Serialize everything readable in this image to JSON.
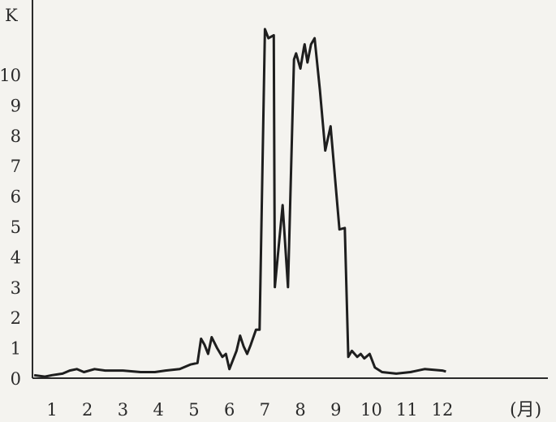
{
  "chart_data": {
    "type": "line",
    "title": "",
    "ylabel": "K",
    "xlabel": "(月)",
    "xlim": [
      0.5,
      13.4
    ],
    "ylim": [
      0,
      11.2
    ],
    "xticks": [
      "1",
      "2",
      "3",
      "4",
      "5",
      "6",
      "7",
      "8",
      "9",
      "10",
      "11",
      "12"
    ],
    "yticks": [
      "0",
      "1",
      "2",
      "3",
      "4",
      "5",
      "6",
      "7",
      "8",
      "9",
      "10"
    ],
    "grid": false,
    "series": [
      {
        "points": [
          [
            0.5,
            0.1
          ],
          [
            0.8,
            0.05
          ],
          [
            1.0,
            0.1
          ],
          [
            1.3,
            0.15
          ],
          [
            1.5,
            0.25
          ],
          [
            1.7,
            0.3
          ],
          [
            1.9,
            0.2
          ],
          [
            2.2,
            0.3
          ],
          [
            2.5,
            0.25
          ],
          [
            3.0,
            0.25
          ],
          [
            3.5,
            0.2
          ],
          [
            3.9,
            0.2
          ],
          [
            4.2,
            0.25
          ],
          [
            4.6,
            0.3
          ],
          [
            4.9,
            0.45
          ],
          [
            5.1,
            0.5
          ],
          [
            5.2,
            1.3
          ],
          [
            5.3,
            1.1
          ],
          [
            5.4,
            0.8
          ],
          [
            5.5,
            1.35
          ],
          [
            5.65,
            1.0
          ],
          [
            5.8,
            0.7
          ],
          [
            5.9,
            0.8
          ],
          [
            6.0,
            0.3
          ],
          [
            6.2,
            0.9
          ],
          [
            6.3,
            1.4
          ],
          [
            6.4,
            1.05
          ],
          [
            6.5,
            0.8
          ],
          [
            6.6,
            1.1
          ],
          [
            6.75,
            1.6
          ],
          [
            6.85,
            1.6
          ],
          [
            7.0,
            11.5
          ],
          [
            7.1,
            11.2
          ],
          [
            7.25,
            11.3
          ],
          [
            7.28,
            3.0
          ],
          [
            7.5,
            5.7
          ],
          [
            7.65,
            3.0
          ],
          [
            7.82,
            10.5
          ],
          [
            7.88,
            10.7
          ],
          [
            8.0,
            10.2
          ],
          [
            8.1,
            10.9
          ],
          [
            8.12,
            11.0
          ],
          [
            8.2,
            10.4
          ],
          [
            8.3,
            11.0
          ],
          [
            8.4,
            11.2
          ],
          [
            8.55,
            9.5
          ],
          [
            8.7,
            7.5
          ],
          [
            8.85,
            8.3
          ],
          [
            9.1,
            4.9
          ],
          [
            9.25,
            4.95
          ],
          [
            9.35,
            0.7
          ],
          [
            9.45,
            0.9
          ],
          [
            9.6,
            0.7
          ],
          [
            9.7,
            0.8
          ],
          [
            9.8,
            0.65
          ],
          [
            9.95,
            0.8
          ],
          [
            10.1,
            0.35
          ],
          [
            10.3,
            0.2
          ],
          [
            10.7,
            0.15
          ],
          [
            11.1,
            0.2
          ],
          [
            11.5,
            0.3
          ],
          [
            12.0,
            0.25
          ],
          [
            12.1,
            0.22
          ]
        ]
      }
    ]
  }
}
